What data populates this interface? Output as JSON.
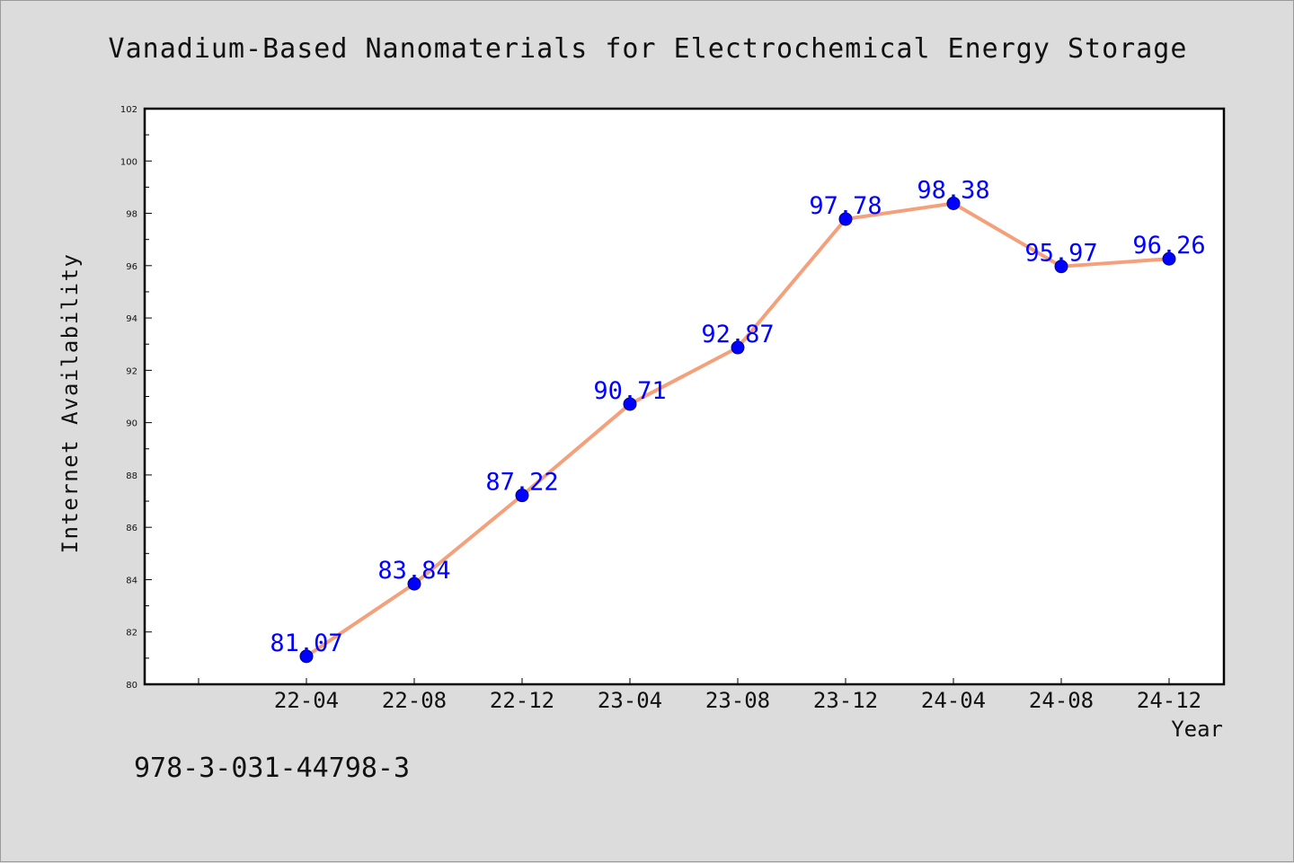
{
  "colors": {
    "background": "#dcdcdc",
    "plot_background": "#ffffff",
    "line": "#f4a07a",
    "marker": "#0000ff",
    "data_label": "#0000ff",
    "axis": "#000000"
  },
  "footer": {
    "isbn": "978-3-031-44798-3"
  },
  "chart_data": {
    "type": "line",
    "title": "Vanadium-Based Nanomaterials for Electrochemical Energy Storage",
    "xlabel": "Year",
    "ylabel": "Internet Availability",
    "categories": [
      "22-04",
      "22-08",
      "22-12",
      "23-04",
      "23-08",
      "23-12",
      "24-04",
      "24-08",
      "24-12"
    ],
    "series": [
      {
        "values": [
          81.07,
          83.84,
          87.22,
          90.71,
          92.87,
          97.78,
          98.38,
          95.97,
          96.26
        ]
      }
    ],
    "data_labels": [
      "81.07",
      "83.84",
      "87.22",
      "90.71",
      "92.87",
      "97.78",
      "98.38",
      "95.97",
      "96.26"
    ],
    "ylim": [
      80,
      102
    ],
    "yticks": [
      "80",
      "82",
      "84",
      "86",
      "88",
      "90",
      "92",
      "94",
      "96",
      "98",
      "100",
      "102"
    ],
    "grid": false,
    "legend": "none"
  }
}
